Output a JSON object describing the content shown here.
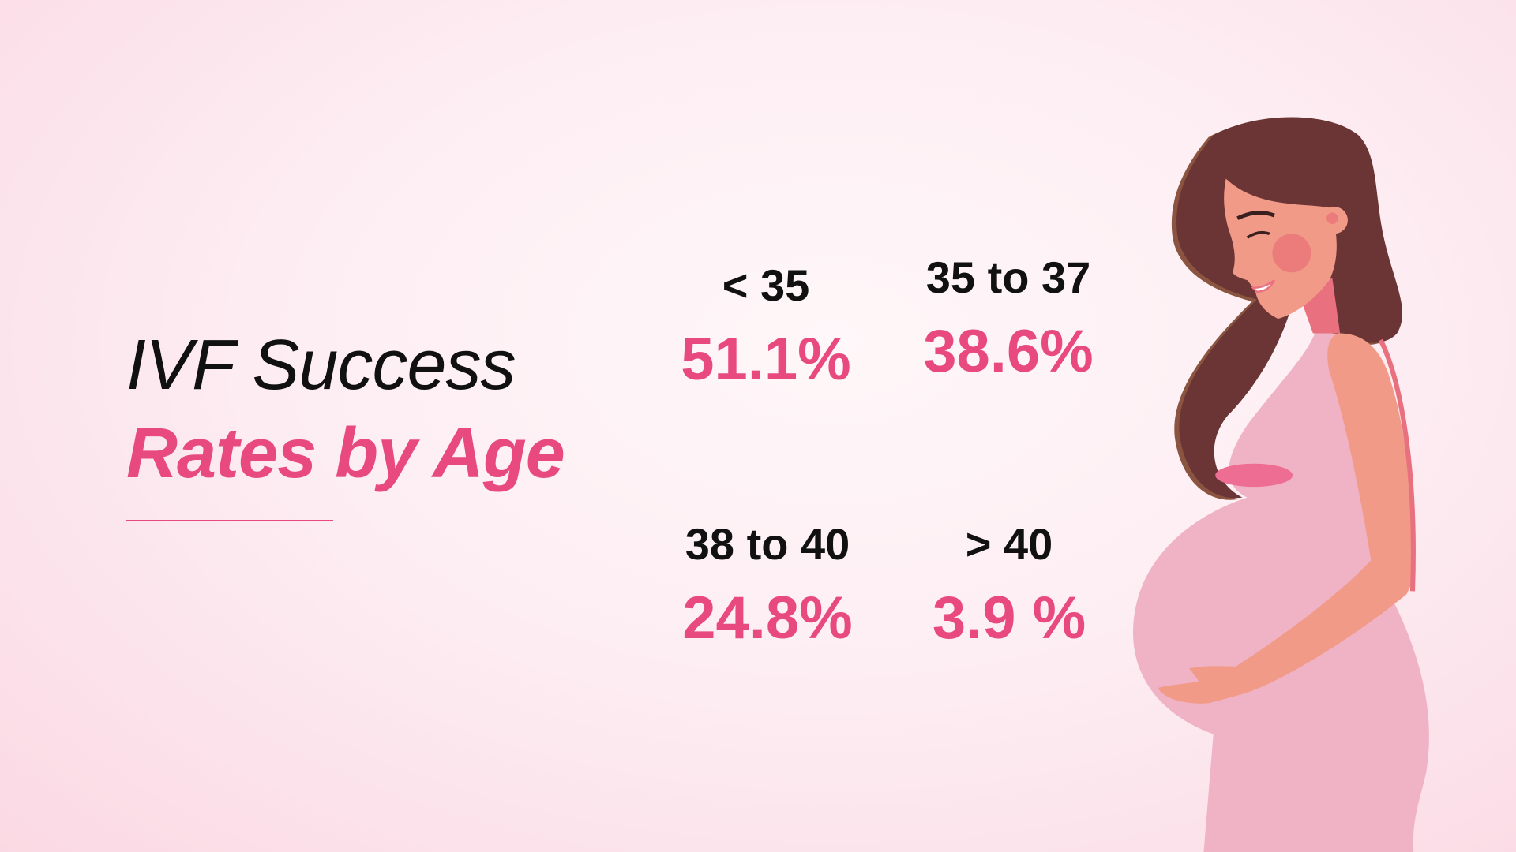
{
  "heading": {
    "line1": "IVF Success",
    "line2": "Rates by Age"
  },
  "stats": [
    {
      "age": "< 35",
      "rate": "51.1%"
    },
    {
      "age": "35 to 37",
      "rate": "38.6%"
    },
    {
      "age": "38 to 40",
      "rate": "24.8%"
    },
    {
      "age": "> 40",
      "rate": "3.9 %"
    }
  ],
  "colors": {
    "accent": "#e84a7f",
    "text": "#111111",
    "dress": "#f0b2c5",
    "skin": "#f29a88",
    "hair": "#6b3535"
  },
  "illustration": "pregnant-woman"
}
